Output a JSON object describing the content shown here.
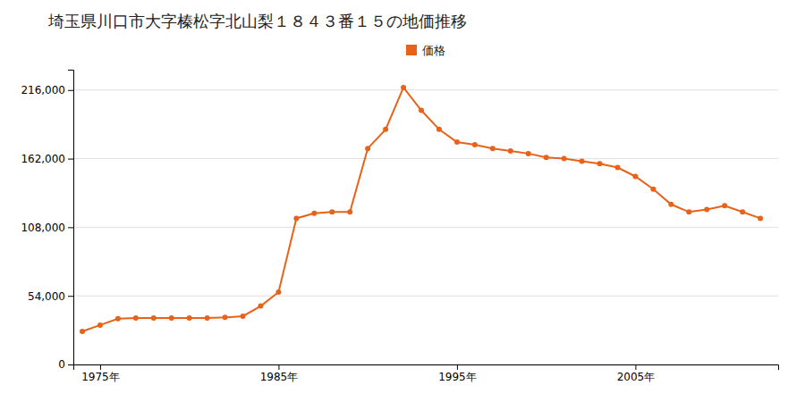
{
  "chart_data": {
    "type": "line",
    "title": "埼玉県川口市大字榛松字北山梨１８４３番１５の地価推移",
    "x": [
      1974,
      1975,
      1976,
      1977,
      1978,
      1979,
      1980,
      1981,
      1982,
      1983,
      1984,
      1985,
      1986,
      1987,
      1988,
      1989,
      1990,
      1991,
      1992,
      1993,
      1994,
      1995,
      1996,
      1997,
      1998,
      1999,
      2000,
      2001,
      2002,
      2003,
      2004,
      2005,
      2006,
      2007,
      2008,
      2009,
      2010,
      2011,
      2012
    ],
    "series": [
      {
        "name": "価格",
        "color": "#e8621a",
        "marker": "circle",
        "line_style": "solid",
        "values": [
          26000,
          31000,
          36000,
          36500,
          36500,
          36500,
          36500,
          36500,
          37000,
          38000,
          46000,
          57000,
          115000,
          119000,
          120000,
          120000,
          170000,
          185000,
          218000,
          200000,
          185000,
          175000,
          173000,
          170000,
          168000,
          166000,
          163000,
          162000,
          160000,
          158000,
          155000,
          148000,
          138000,
          126000,
          120000,
          122000,
          125000,
          120000,
          115000
        ]
      }
    ],
    "xlim": [
      1973.5,
      2013.0
    ],
    "xticks": [
      {
        "value": 1975,
        "label": "1975年"
      },
      {
        "value": 1985,
        "label": "1985年"
      },
      {
        "value": 1995,
        "label": "1995年"
      },
      {
        "value": 2005,
        "label": "2005年"
      }
    ],
    "ylim": [
      0,
      232000
    ],
    "yticks": [
      0,
      {
        "value": 54000,
        "label": "54,000"
      },
      {
        "value": 108000,
        "label": "108,000"
      },
      {
        "value": 162000,
        "label": "162,000"
      },
      {
        "value": 216000,
        "label": "216,000"
      }
    ],
    "grid": "y",
    "legend": "top"
  }
}
